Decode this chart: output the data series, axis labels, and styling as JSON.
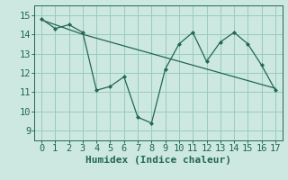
{
  "title": "",
  "xlabel": "Humidex (Indice chaleur)",
  "ylabel": "",
  "background_color": "#cce8e0",
  "grid_color": "#99ccbb",
  "line_color": "#226655",
  "marker_color": "#226655",
  "xlim": [
    -0.5,
    17.5
  ],
  "ylim": [
    8.5,
    15.5
  ],
  "xticks": [
    0,
    1,
    2,
    3,
    4,
    5,
    6,
    7,
    8,
    9,
    10,
    11,
    12,
    13,
    14,
    15,
    16,
    17
  ],
  "yticks": [
    9,
    10,
    11,
    12,
    13,
    14,
    15
  ],
  "line1_x": [
    0,
    1,
    2,
    3,
    4,
    5,
    6,
    7,
    8,
    9,
    10,
    11,
    12,
    13,
    14,
    15,
    16,
    17
  ],
  "line1_y": [
    14.8,
    14.3,
    14.5,
    14.1,
    11.1,
    11.3,
    11.8,
    9.7,
    9.4,
    12.2,
    13.5,
    14.1,
    12.6,
    13.6,
    14.1,
    13.5,
    12.4,
    11.1
  ],
  "line2_x": [
    0,
    3,
    17
  ],
  "line2_y": [
    14.75,
    14.0,
    11.2
  ],
  "font_size_label": 8,
  "font_size_tick": 7.5
}
